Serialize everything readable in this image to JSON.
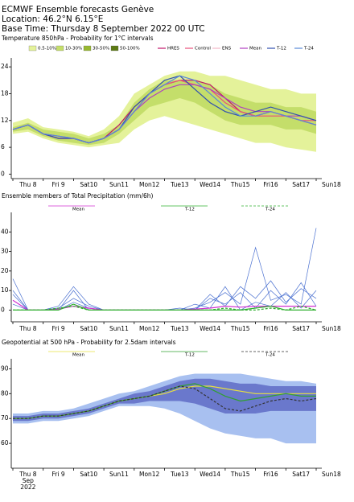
{
  "header": {
    "title": "ECMWF Ensemble forecasts Genève",
    "location": "Location:  46.2°N 6.15°E",
    "base_time": "Base Time: Thursday  8 September 2022 00 UTC"
  },
  "chart_data": [
    {
      "type": "line",
      "title": "Temperature 850hPa - Probability for 1°C intervals",
      "x_labels": [
        "Thu 8",
        "Fri 9",
        "Sat10",
        "Sun11",
        "Mon12",
        "Tue13",
        "Wed14",
        "Thu15",
        "Fri16",
        "Sat17",
        "Sun18"
      ],
      "x_label_colors": [
        "#000",
        "#000",
        "#000",
        "#e00000",
        "#000",
        "#000",
        "#000",
        "#000",
        "#000",
        "#000",
        "#e00000"
      ],
      "ylim": [
        -1,
        26
      ],
      "yticks": [
        0,
        6,
        12,
        18,
        24
      ],
      "probability_legend": [
        {
          "name": "0.5-10%",
          "color": "#e4f29a",
          "low": [
            9,
            9.5,
            8,
            7,
            6.5,
            6,
            6.5,
            7,
            10,
            12,
            13,
            12,
            11,
            10,
            9,
            8,
            7,
            7,
            6,
            5.5,
            5
          ],
          "high": [
            11.5,
            12.5,
            10.5,
            10,
            9.5,
            8.5,
            10,
            13,
            18,
            20,
            22,
            23,
            23,
            22,
            22,
            21,
            20,
            19,
            19,
            18,
            18
          ]
        },
        {
          "name": "10-30%",
          "color": "#c4de6a",
          "low": [
            9.5,
            10,
            8.5,
            7.5,
            7,
            6.5,
            7,
            9,
            12,
            15,
            16,
            17,
            16,
            14,
            12,
            11,
            11,
            11,
            10,
            10,
            9
          ],
          "high": [
            10.5,
            11.5,
            10,
            9.5,
            9,
            8,
            9,
            11,
            16,
            19,
            21,
            21,
            21,
            20,
            18,
            17,
            16,
            16,
            15,
            15,
            14
          ]
        },
        {
          "name": "30-50%",
          "color": "#98b830"
        },
        {
          "name": "50-100%",
          "color": "#5c7a14"
        }
      ],
      "legend_only": [
        {
          "name": "ENS",
          "color": "#f4b8c8"
        }
      ],
      "series": [
        {
          "name": "HRES",
          "color": "#c0186a",
          "values": [
            10,
            11,
            9,
            8,
            8,
            7,
            8,
            11,
            15,
            18,
            20,
            21,
            21,
            20,
            17,
            14,
            13,
            14,
            13,
            12,
            11
          ]
        },
        {
          "name": "Control",
          "color": "#e8507a",
          "values": [
            10,
            11,
            9,
            8,
            8,
            7,
            8,
            10,
            14,
            18,
            20,
            21,
            20,
            19,
            16,
            14,
            13,
            13,
            13,
            12,
            12
          ]
        },
        {
          "name": "Mean",
          "color": "#b040c0",
          "values": [
            10,
            11,
            9,
            8.5,
            8,
            7,
            8,
            10,
            14,
            17,
            19,
            20,
            20,
            19,
            17,
            15,
            14,
            14,
            13,
            13,
            12
          ]
        },
        {
          "name": "T-12",
          "color": "#3050b0",
          "values": [
            10,
            11,
            9,
            8,
            8,
            7,
            8,
            10,
            15,
            18,
            21,
            22,
            19,
            16,
            14,
            13,
            14,
            15,
            14,
            13,
            12
          ]
        },
        {
          "name": "T-24",
          "color": "#5a8ad8",
          "values": [
            10,
            11,
            9,
            8.5,
            8,
            7,
            8,
            10,
            14,
            18,
            20,
            22,
            21,
            18,
            15,
            13,
            13,
            14,
            13,
            12,
            11
          ]
        }
      ]
    },
    {
      "type": "line",
      "title": "Ensemble members of Total Precipitation (mm/6h)",
      "x_labels": [
        "Thu 8",
        "Fri 9",
        "Sat10",
        "Sun11",
        "Mon12",
        "Tue13",
        "Wed14",
        "Thu15",
        "Fri16",
        "Sat17",
        "Sun18"
      ],
      "x_label_colors": [
        "#000",
        "#000",
        "#000",
        "#e00000",
        "#000",
        "#000",
        "#000",
        "#000",
        "#000",
        "#000",
        "#e00000"
      ],
      "ylim": [
        -6,
        50
      ],
      "yticks": [
        0,
        10,
        20,
        30,
        40
      ],
      "members": {
        "color": "#4a70d0",
        "values": [
          [
            16,
            0,
            0,
            2,
            12,
            3,
            0,
            0,
            0,
            0,
            0,
            0,
            1,
            4,
            9,
            3,
            32,
            5,
            8,
            3,
            42
          ],
          [
            10,
            0,
            0,
            1,
            6,
            2,
            0,
            0,
            0,
            0,
            0,
            0,
            0,
            8,
            2,
            12,
            6,
            15,
            4,
            11,
            6
          ],
          [
            3,
            0,
            0,
            0,
            10,
            0,
            0,
            0,
            0,
            0,
            0,
            0,
            3,
            1,
            12,
            0,
            4,
            2,
            9,
            1,
            10
          ],
          [
            8,
            0,
            0,
            0,
            4,
            1,
            0,
            0,
            0,
            0,
            0,
            1,
            0,
            6,
            3,
            9,
            1,
            10,
            3,
            14,
            2
          ]
        ]
      },
      "series": [
        {
          "name": "Mean",
          "color": "#d030d0",
          "values": [
            5,
            0,
            0,
            0.5,
            2,
            1,
            0,
            0,
            0,
            0,
            0,
            0,
            0.5,
            1,
            2,
            1.5,
            2,
            2,
            2,
            2,
            2
          ]
        },
        {
          "name": "T-12",
          "color": "#30b030",
          "values": [
            0,
            0,
            0,
            0,
            3,
            0,
            0,
            0,
            0,
            0,
            0,
            0,
            0,
            0,
            0,
            0,
            1,
            2,
            0,
            0,
            0
          ]
        },
        {
          "name": "T-24",
          "color": "#30b030",
          "dash": true,
          "values": [
            0,
            0,
            0,
            1,
            2,
            0,
            0,
            0,
            0,
            0,
            0,
            0,
            0,
            0,
            1,
            0,
            0,
            1,
            0,
            2,
            0
          ]
        }
      ]
    },
    {
      "type": "line",
      "title": "Geopotential at 500 hPa - Probability for 2.5dam intervals",
      "x_labels": [
        "Thu 8",
        "Fri 9",
        "Sat10",
        "Sun11",
        "Mon12",
        "Tue13",
        "Wed14",
        "Thu15",
        "Fri16",
        "Sat17",
        "Sun18"
      ],
      "x_label_colors": [
        "#000",
        "#000",
        "#000",
        "#e00000",
        "#000",
        "#000",
        "#000",
        "#000",
        "#000",
        "#000",
        "#e00000"
      ],
      "month_label": "Sep",
      "year_label": "2022",
      "ylim": [
        50,
        94
      ],
      "yticks": [
        60,
        70,
        80,
        90
      ],
      "probability_legend": [
        {
          "color": "#a8c0f0",
          "low": [
            68,
            68,
            69,
            69,
            70,
            71,
            73,
            75,
            75,
            75,
            74,
            72,
            69,
            66,
            64,
            63,
            62,
            62,
            60,
            60,
            60
          ],
          "high": [
            72,
            72,
            73,
            73,
            74,
            76,
            78,
            80,
            81,
            83,
            85,
            87,
            88,
            88,
            88,
            88,
            87,
            86,
            85,
            85,
            84
          ]
        },
        {
          "color": "#6a78cc",
          "low": [
            69,
            69,
            70,
            70,
            71,
            72,
            74,
            76,
            76,
            77,
            77,
            77,
            76,
            74,
            72,
            72,
            72,
            73,
            73,
            73,
            73
          ],
          "high": [
            71,
            71,
            72,
            72,
            73,
            74,
            76,
            78,
            80,
            81,
            83,
            85,
            86,
            86,
            85,
            84,
            84,
            83,
            83,
            83,
            83
          ]
        }
      ],
      "series": [
        {
          "name": "Mean",
          "color": "#e8e040",
          "values": [
            70,
            70,
            71,
            71,
            72,
            73,
            75,
            77,
            78,
            79,
            80,
            82,
            83,
            83,
            82,
            81,
            80,
            80,
            80,
            80,
            80
          ]
        },
        {
          "name": "T-12",
          "color": "#30a030",
          "values": [
            70,
            70,
            71,
            71,
            72,
            73,
            75,
            77,
            78,
            79,
            81,
            83,
            84,
            82,
            79,
            77,
            78,
            79,
            80,
            79,
            79
          ]
        },
        {
          "name": "T-24",
          "color": "#333333",
          "dash": true,
          "values": [
            70,
            70,
            71,
            71,
            72,
            73,
            75,
            77,
            78,
            79,
            81,
            83,
            82,
            78,
            74,
            73,
            75,
            77,
            78,
            77,
            78
          ]
        }
      ]
    }
  ]
}
